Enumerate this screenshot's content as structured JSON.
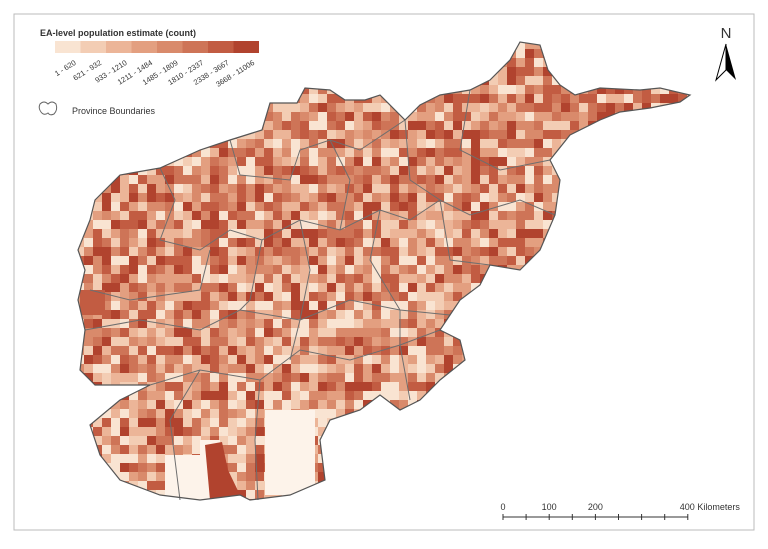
{
  "legend": {
    "title": "EA-level population estimate (count)",
    "classes": [
      {
        "label": "1 - 620",
        "color": "#f9e4d2"
      },
      {
        "label": "621 - 932",
        "color": "#f3cdb4"
      },
      {
        "label": "933 - 1210",
        "color": "#ecb598"
      },
      {
        "label": "1211 - 1484",
        "color": "#e39f80"
      },
      {
        "label": "1485 - 1809",
        "color": "#d98a6b"
      },
      {
        "label": "1810 - 2337",
        "color": "#ce7457"
      },
      {
        "label": "2338 - 3667",
        "color": "#c25c42"
      },
      {
        "label": "3668 - 11006",
        "color": "#b1432e"
      }
    ],
    "boundary_label": "Province Boundaries"
  },
  "north_arrow": {
    "label": "N"
  },
  "scale_bar": {
    "labels": [
      "0",
      "100",
      "200",
      "400 Kilometers"
    ]
  }
}
